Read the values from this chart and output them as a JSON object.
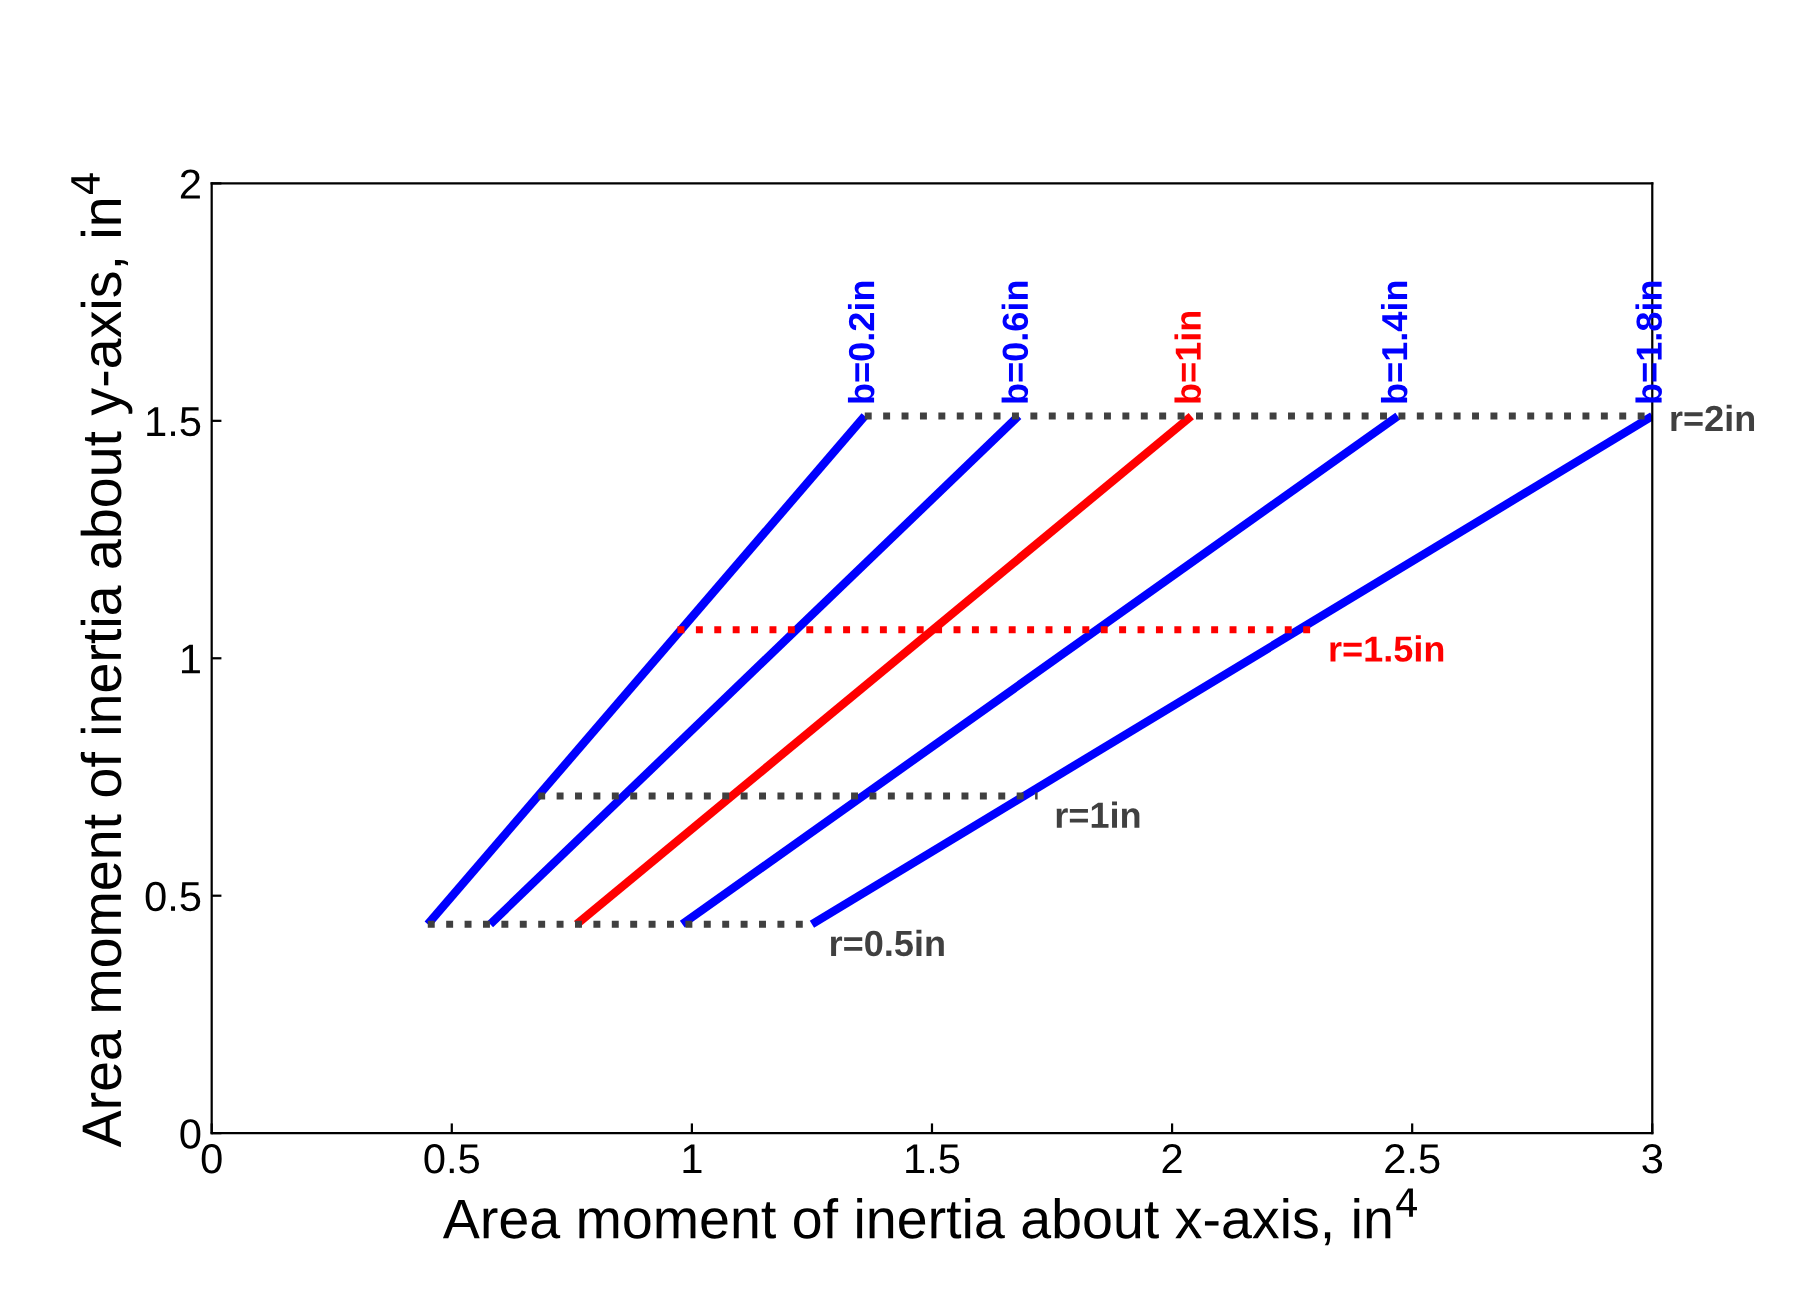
{
  "chart_data": {
    "type": "line",
    "xlabel": "Area moment of inertia about x-axis, in$^{4}$",
    "ylabel": "Area moment of inertia about y-axis, in$^{4}$",
    "xlim": [
      0,
      3
    ],
    "ylim": [
      0,
      2
    ],
    "xticks": [
      0,
      0.5,
      1,
      1.5,
      2,
      2.5,
      3
    ],
    "yticks": [
      0,
      0.5,
      1,
      1.5,
      2
    ],
    "grid": false,
    "legend": false,
    "marker": "none",
    "series": [
      {
        "name": "b=0.2in",
        "color": "#0000ff",
        "line_style": "solid",
        "x": [
          0.45,
          1.36
        ],
        "values": [
          0.44,
          1.51
        ]
      },
      {
        "name": "b=0.6in",
        "color": "#0000ff",
        "line_style": "solid",
        "x": [
          0.58,
          1.68
        ],
        "values": [
          0.44,
          1.51
        ]
      },
      {
        "name": "b=1in",
        "color": "#ff0000",
        "line_style": "solid",
        "x": [
          0.76,
          2.04
        ],
        "values": [
          0.44,
          1.51
        ]
      },
      {
        "name": "b=1.4in",
        "color": "#0000ff",
        "line_style": "solid",
        "x": [
          0.98,
          2.47
        ],
        "values": [
          0.44,
          1.51
        ]
      },
      {
        "name": "b=1.8in",
        "color": "#0000ff",
        "line_style": "solid",
        "x": [
          1.25,
          3.0
        ],
        "values": [
          0.44,
          1.51
        ]
      },
      {
        "name": "r=2in",
        "color": "#404040",
        "line_style": "dotted",
        "x": [
          1.36,
          3.0
        ],
        "values": [
          1.51,
          1.51
        ]
      },
      {
        "name": "r=1.5in",
        "color": "#ff0000",
        "line_style": "dotted",
        "x": [
          0.97,
          2.29
        ],
        "values": [
          1.06,
          1.06
        ]
      },
      {
        "name": "r=1in",
        "color": "#404040",
        "line_style": "dotted",
        "x": [
          0.68,
          1.72
        ],
        "values": [
          0.71,
          0.71
        ]
      },
      {
        "name": "r=0.5in",
        "color": "#404040",
        "line_style": "dotted",
        "x": [
          0.45,
          1.25
        ],
        "values": [
          0.44,
          0.44
        ]
      }
    ]
  }
}
